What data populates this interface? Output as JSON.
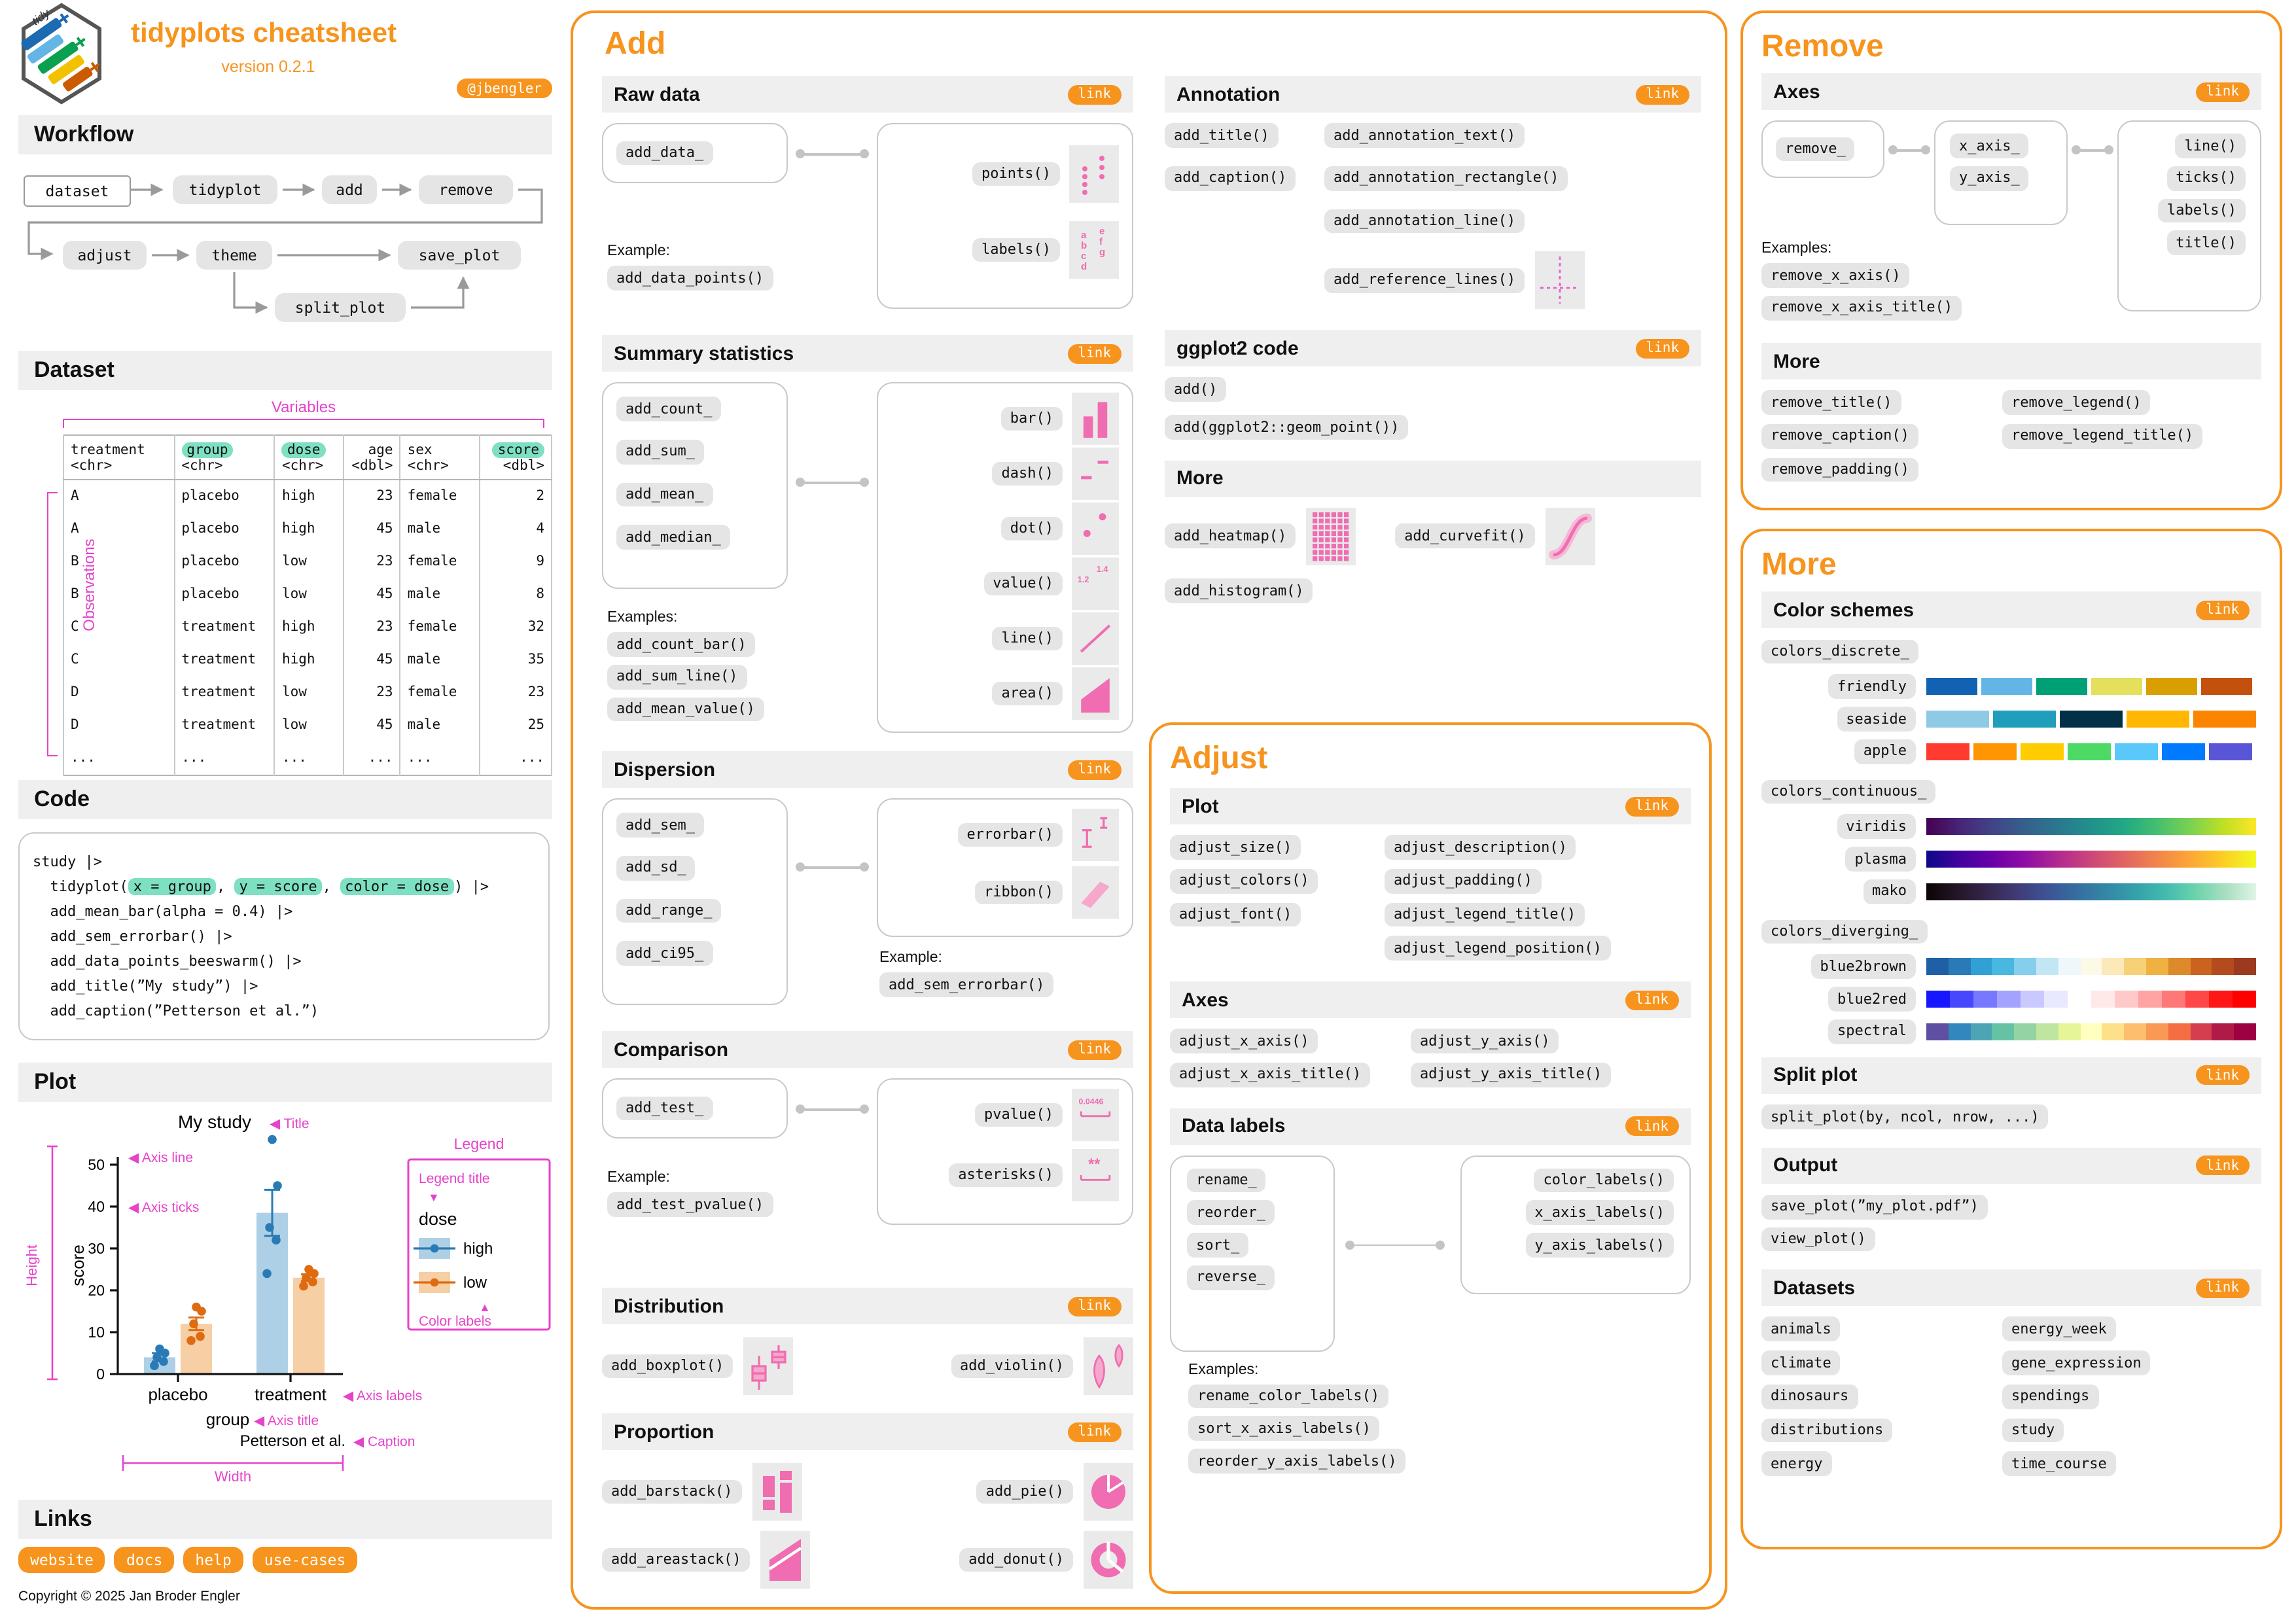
{
  "ui": {
    "link_label": "link",
    "example_label": "Example:",
    "examples_label": "Examples:"
  },
  "colors": {
    "accent": "#f6941e",
    "magenta": "#e643cb",
    "pink": "#ef6db0",
    "pink_light": "#f5a8cc",
    "teal_highlight": "#7ee0c2",
    "pill_bg": "#e5e5e5",
    "bar_bg": "#efefef"
  },
  "header": {
    "title": "tidyplots cheatsheet",
    "version": "version 0.2.1",
    "badge": "@jbengler"
  },
  "workflow": {
    "title": "Workflow",
    "nodes": [
      "dataset",
      "tidyplot",
      "add",
      "remove",
      "adjust",
      "theme",
      "save_plot",
      "split_plot"
    ]
  },
  "dataset": {
    "title": "Dataset",
    "variables_label": "Variables",
    "observations_label": "Observations",
    "columns": [
      {
        "name": "treatment",
        "type": "<chr>",
        "hl": false,
        "align": "left"
      },
      {
        "name": "group",
        "type": "<chr>",
        "hl": true,
        "align": "left"
      },
      {
        "name": "dose",
        "type": "<chr>",
        "hl": true,
        "align": "left"
      },
      {
        "name": "age",
        "type": "<dbl>",
        "hl": false,
        "align": "right"
      },
      {
        "name": "sex",
        "type": "<chr>",
        "hl": false,
        "align": "left"
      },
      {
        "name": "score",
        "type": "<dbl>",
        "hl": true,
        "align": "right"
      }
    ],
    "rows": [
      [
        "A",
        "placebo",
        "high",
        "23",
        "female",
        "2"
      ],
      [
        "A",
        "placebo",
        "high",
        "45",
        "male",
        "4"
      ],
      [
        "B",
        "placebo",
        "low",
        "23",
        "female",
        "9"
      ],
      [
        "B",
        "placebo",
        "low",
        "45",
        "male",
        "8"
      ],
      [
        "C",
        "treatment",
        "high",
        "23",
        "female",
        "32"
      ],
      [
        "C",
        "treatment",
        "high",
        "45",
        "male",
        "35"
      ],
      [
        "D",
        "treatment",
        "low",
        "23",
        "female",
        "23"
      ],
      [
        "D",
        "treatment",
        "low",
        "45",
        "male",
        "25"
      ],
      [
        "...",
        "...",
        "...",
        "...",
        "...",
        "..."
      ]
    ]
  },
  "code": {
    "title": "Code",
    "lines": [
      [
        {
          "t": "study |>"
        }
      ],
      [
        {
          "t": "  tidyplot("
        },
        {
          "t": "x = group",
          "h": 1
        },
        {
          "t": ", "
        },
        {
          "t": "y = score",
          "h": 1
        },
        {
          "t": ", "
        },
        {
          "t": "color = dose",
          "h": 1
        },
        {
          "t": ") |>"
        }
      ],
      [
        {
          "t": "  add_mean_bar(alpha = 0.4) |>"
        }
      ],
      [
        {
          "t": "  add_sem_errorbar() |>"
        }
      ],
      [
        {
          "t": "  add_data_points_beeswarm() |>"
        }
      ],
      [
        {
          "t": "  add_title(”My study”) |>"
        }
      ],
      [
        {
          "t": "  add_caption(”Petterson et al.”)"
        }
      ]
    ]
  },
  "plot": {
    "title": "Plot",
    "annotations": {
      "title": "Title",
      "axis_line": "Axis line",
      "axis_ticks": "Axis ticks",
      "height": "Height",
      "legend": "Legend",
      "legend_title": "Legend title",
      "color_labels": "Color labels",
      "axis_labels": "Axis labels",
      "axis_title": "Axis title",
      "caption": "Caption",
      "width": "Width"
    }
  },
  "links": {
    "title": "Links",
    "buttons": [
      "website",
      "docs",
      "help",
      "use-cases"
    ],
    "copyright": "Copyright © 2025 Jan Broder Engler"
  },
  "add": {
    "title": "Add",
    "raw_data": {
      "title": "Raw data",
      "source": "add_data_",
      "targets": [
        "points()",
        "labels()"
      ],
      "examples": [
        "add_data_points()"
      ]
    },
    "summary": {
      "title": "Summary statistics",
      "sources": [
        "add_count_",
        "add_sum_",
        "add_mean_",
        "add_median_"
      ],
      "targets": [
        "bar()",
        "dash()",
        "dot()",
        "value()",
        "line()",
        "area()"
      ],
      "examples": [
        "add_count_bar()",
        "add_sum_line()",
        "add_mean_value()"
      ]
    },
    "dispersion": {
      "title": "Dispersion",
      "sources": [
        "add_sem_",
        "add_sd_",
        "add_range_",
        "add_ci95_"
      ],
      "targets": [
        "errorbar()",
        "ribbon()"
      ],
      "examples": [
        "add_sem_errorbar()"
      ]
    },
    "comparison": {
      "title": "Comparison",
      "sources": [
        "add_test_"
      ],
      "targets": [
        "pvalue()",
        "asterisks()"
      ],
      "pvalue_icon_text": "0.0446",
      "asterisks_icon_text": "**",
      "examples": [
        "add_test_pvalue()"
      ]
    },
    "distribution": {
      "title": "Distribution",
      "items": [
        "add_boxplot()",
        "add_violin()"
      ]
    },
    "proportion": {
      "title": "Proportion",
      "items": [
        "add_barstack()",
        "add_pie()",
        "add_areastack()",
        "add_donut()"
      ]
    },
    "annotation": {
      "title": "Annotation",
      "items": [
        "add_title()",
        "add_annotation_text()",
        "add_caption()",
        "add_annotation_rectangle()",
        "add_annotation_line()",
        "add_reference_lines()"
      ]
    },
    "ggplot2": {
      "title": "ggplot2 code",
      "items": [
        "add()",
        "add(ggplot2::geom_point())"
      ]
    },
    "more": {
      "title": "More",
      "items": [
        "add_heatmap()",
        "add_curvefit()",
        "add_histogram()"
      ]
    }
  },
  "adjust": {
    "title": "Adjust",
    "plot": {
      "title": "Plot",
      "col1": [
        "adjust_size()",
        "adjust_colors()",
        "adjust_font()"
      ],
      "col2": [
        "adjust_description()",
        "adjust_padding()",
        "adjust_legend_title()",
        "adjust_legend_position()"
      ]
    },
    "axes": {
      "title": "Axes",
      "col1": [
        "adjust_x_axis()",
        "adjust_x_axis_title()"
      ],
      "col2": [
        "adjust_y_axis()",
        "adjust_y_axis_title()"
      ]
    },
    "data_labels": {
      "title": "Data labels",
      "sources": [
        "rename_",
        "reorder_",
        "sort_",
        "reverse_"
      ],
      "targets": [
        "color_labels()",
        "x_axis_labels()",
        "y_axis_labels()"
      ],
      "examples": [
        "rename_color_labels()",
        "sort_x_axis_labels()",
        "reorder_y_axis_labels()"
      ]
    }
  },
  "remove": {
    "title": "Remove",
    "axes": {
      "title": "Axes",
      "source": "remove_",
      "middle": [
        "x_axis_",
        "y_axis_"
      ],
      "targets": [
        "line()",
        "ticks()",
        "labels()",
        "title()"
      ],
      "examples": [
        "remove_x_axis()",
        "remove_x_axis_title()"
      ]
    },
    "more": {
      "title": "More",
      "col1": [
        "remove_title()",
        "remove_caption()",
        "remove_padding()"
      ],
      "col2": [
        "remove_legend()",
        "remove_legend_title()"
      ]
    }
  },
  "more_panel": {
    "title": "More",
    "color_schemes": {
      "title": "Color schemes",
      "discrete_label": "colors_discrete_",
      "discrete": [
        {
          "name": "friendly",
          "colors": [
            "#1262b3",
            "#63b5e5",
            "#00a077",
            "#e5df5e",
            "#d99e00",
            "#c4500e"
          ]
        },
        {
          "name": "seaside",
          "colors": [
            "#8ecae6",
            "#219ebc",
            "#023047",
            "#ffb703",
            "#fb8500"
          ]
        },
        {
          "name": "apple",
          "colors": [
            "#ff3b30",
            "#ff9500",
            "#ffcc00",
            "#4cd964",
            "#5ac8fa",
            "#007aff",
            "#5856d6"
          ]
        }
      ],
      "continuous_label": "colors_continuous_",
      "continuous": [
        {
          "name": "viridis",
          "stops": [
            "#440154",
            "#482475",
            "#414487",
            "#35608d",
            "#2a788e",
            "#21918c",
            "#22a884",
            "#44bf70",
            "#7ad151",
            "#bddf26",
            "#fde725"
          ]
        },
        {
          "name": "plasma",
          "stops": [
            "#0d0887",
            "#41049d",
            "#6a00a8",
            "#8f0da4",
            "#b12a90",
            "#cc4778",
            "#e16462",
            "#f2844b",
            "#fca636",
            "#fcce25",
            "#f0f921"
          ]
        },
        {
          "name": "mako",
          "stops": [
            "#0b0405",
            "#231526",
            "#35264c",
            "#403a75",
            "#3d5296",
            "#366da0",
            "#3487a6",
            "#35a1ab",
            "#43bbad",
            "#6cd3ad",
            "#a9dfc0",
            "#def5e5"
          ]
        }
      ],
      "diverging_label": "colors_diverging_",
      "diverging": [
        {
          "name": "blue2brown",
          "stops": [
            "#1f5fa6",
            "#2a7ab8",
            "#31a0d4",
            "#49b8e0",
            "#86cfec",
            "#c3e6f5",
            "#eef7fb",
            "#fdf9e7",
            "#fbe9b9",
            "#f7d178",
            "#efb13f",
            "#dd8a2a",
            "#c9631f",
            "#b34b1e",
            "#9c3a20"
          ]
        },
        {
          "name": "blue2red",
          "stops": [
            "#1616ff",
            "#4747ff",
            "#7878ff",
            "#a3a3ff",
            "#c9c9ff",
            "#e8e8ff",
            "#ffffff",
            "#ffe8e8",
            "#ffc9c9",
            "#ffa3a3",
            "#ff7878",
            "#ff4747",
            "#ff1616",
            "#ff0000"
          ]
        },
        {
          "name": "spectral",
          "stops": [
            "#5e4fa2",
            "#3288bd",
            "#4da4b4",
            "#66c2a5",
            "#94d4a4",
            "#bfe5a0",
            "#e6f598",
            "#ffffbf",
            "#fee08b",
            "#fdbe6e",
            "#fa9856",
            "#f46d43",
            "#d53e4f",
            "#b01a47",
            "#9e0142"
          ]
        }
      ]
    },
    "split_plot": {
      "title": "Split plot",
      "items": [
        "split_plot(by, ncol, nrow, ...)"
      ]
    },
    "output": {
      "title": "Output",
      "items": [
        "save_plot(”my_plot.pdf”)",
        "view_plot()"
      ]
    },
    "datasets": {
      "title": "Datasets",
      "col1": [
        "animals",
        "climate",
        "dinosaurs",
        "distributions",
        "energy"
      ],
      "col2": [
        "energy_week",
        "gene_expression",
        "spendings",
        "study",
        "time_course"
      ]
    }
  },
  "chart_data": {
    "type": "bar",
    "title": "My study",
    "xlabel": "group",
    "ylabel": "score",
    "caption": "Petterson et al.",
    "legend_title": "dose",
    "categories": [
      "placebo",
      "treatment"
    ],
    "yticks": [
      0,
      10,
      20,
      30,
      40,
      50
    ],
    "ylim": [
      0,
      57
    ],
    "legend_position": "right",
    "series": [
      {
        "name": "high",
        "bar_color": "#aed0e6",
        "point_color": "#2a7ab5",
        "means": [
          4,
          38.5
        ],
        "sem": [
          1,
          5.5
        ],
        "points": [
          [
            2,
            3,
            4,
            5,
            6
          ],
          [
            24,
            32,
            35,
            45,
            56
          ]
        ]
      },
      {
        "name": "low",
        "bar_color": "#f6cfa4",
        "point_color": "#df6b11",
        "means": [
          12,
          23
        ],
        "sem": [
          1.5,
          0.8
        ],
        "points": [
          [
            8,
            9,
            12,
            15,
            16
          ],
          [
            21,
            22,
            23,
            24,
            25
          ]
        ]
      }
    ]
  }
}
